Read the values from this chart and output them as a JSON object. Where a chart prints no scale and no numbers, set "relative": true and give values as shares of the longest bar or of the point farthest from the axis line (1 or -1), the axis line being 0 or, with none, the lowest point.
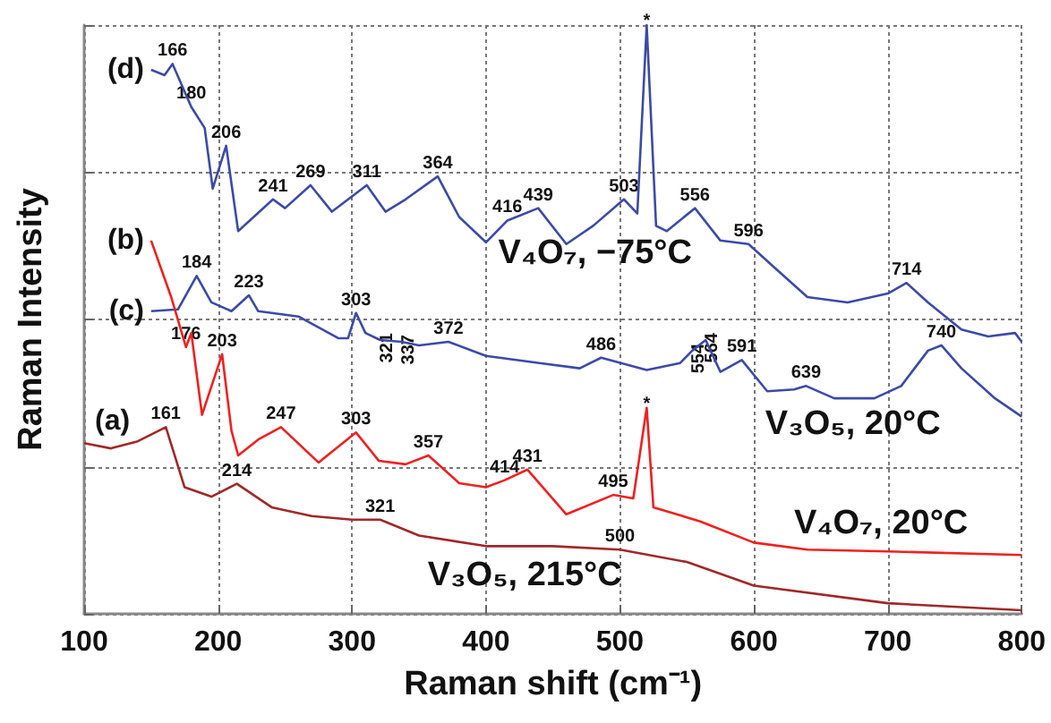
{
  "chart_data": {
    "type": "line",
    "relative": true,
    "xlabel": "Raman shift (cm⁻¹)",
    "ylabel": "Raman Intensity",
    "xlim": [
      100,
      800
    ],
    "xticks": [
      100,
      200,
      300,
      400,
      500,
      600,
      700,
      800
    ],
    "grid": true,
    "marker": "none",
    "line_style": "solid",
    "series": [
      {
        "name": "(d)",
        "color": "#3b4aa8",
        "x": [
          150,
          160,
          166,
          180,
          190,
          196,
          206,
          215,
          241,
          250,
          269,
          285,
          311,
          325,
          340,
          364,
          380,
          400,
          416,
          439,
          460,
          480,
          503,
          513,
          520,
          527,
          535,
          556,
          575,
          596,
          615,
          640,
          670,
          700,
          714,
          730,
          755,
          775,
          795,
          800
        ],
        "values": [
          0.924,
          0.915,
          0.934,
          0.861,
          0.825,
          0.722,
          0.795,
          0.65,
          0.704,
          0.689,
          0.728,
          0.683,
          0.728,
          0.683,
          0.704,
          0.743,
          0.674,
          0.631,
          0.668,
          0.689,
          0.628,
          0.659,
          0.704,
          0.68,
          1.0,
          0.659,
          0.65,
          0.689,
          0.634,
          0.628,
          0.589,
          0.538,
          0.529,
          0.544,
          0.562,
          0.529,
          0.483,
          0.471,
          0.477,
          0.462
        ]
      },
      {
        "name": "(c)",
        "color": "#3b4aa8",
        "x": [
          150,
          170,
          184,
          195,
          210,
          223,
          230,
          260,
          290,
          297,
          303,
          310,
          321,
          337,
          350,
          372,
          400,
          440,
          470,
          486,
          520,
          545,
          554,
          564,
          575,
          591,
          610,
          630,
          639,
          660,
          690,
          710,
          730,
          740,
          755,
          780,
          800
        ],
        "values": [
          0.514,
          0.517,
          0.574,
          0.529,
          0.514,
          0.541,
          0.514,
          0.505,
          0.468,
          0.468,
          0.511,
          0.477,
          0.465,
          0.462,
          0.456,
          0.462,
          0.438,
          0.426,
          0.417,
          0.435,
          0.414,
          0.426,
          0.447,
          0.465,
          0.411,
          0.431,
          0.378,
          0.381,
          0.387,
          0.366,
          0.366,
          0.387,
          0.447,
          0.456,
          0.417,
          0.366,
          0.335
        ]
      },
      {
        "name": "(b)",
        "color": "#f02020",
        "x": [
          150,
          165,
          176,
          180,
          188,
          203,
          210,
          215,
          230,
          247,
          275,
          303,
          320,
          340,
          357,
          380,
          400,
          414,
          431,
          460,
          495,
          510,
          520,
          525,
          560,
          600,
          640,
          700,
          800
        ],
        "values": [
          0.634,
          0.538,
          0.453,
          0.477,
          0.338,
          0.441,
          0.311,
          0.269,
          0.296,
          0.317,
          0.257,
          0.308,
          0.26,
          0.254,
          0.269,
          0.222,
          0.215,
          0.227,
          0.245,
          0.169,
          0.202,
          0.196,
          0.35,
          0.181,
          0.157,
          0.121,
          0.109,
          0.106,
          0.1
        ]
      },
      {
        "name": "(a)",
        "color": "#a02828",
        "x": [
          100,
          120,
          140,
          161,
          175,
          195,
          214,
          240,
          270,
          300,
          321,
          350,
          400,
          450,
          500,
          550,
          600,
          700,
          800
        ],
        "values": [
          0.29,
          0.281,
          0.293,
          0.317,
          0.215,
          0.199,
          0.221,
          0.181,
          0.166,
          0.16,
          0.16,
          0.133,
          0.115,
          0.115,
          0.109,
          0.088,
          0.048,
          0.018,
          0.006
        ]
      }
    ],
    "annotations": [
      "V₄O₇, −75°C",
      "V₃O₅, 20°C",
      "V₄O₇, 20°C",
      "V₃O₅, 215°C",
      {
        "text": "166",
        "x": 166,
        "y": 0.934
      },
      {
        "text": "180",
        "x": 180,
        "y": 0.861
      },
      {
        "text": "206",
        "x": 206,
        "y": 0.795
      },
      {
        "text": "241",
        "x": 241,
        "y": 0.704
      },
      {
        "text": "269",
        "x": 269,
        "y": 0.728
      },
      {
        "text": "311",
        "x": 311,
        "y": 0.728
      },
      {
        "text": "364",
        "x": 364,
        "y": 0.743
      },
      {
        "text": "416",
        "x": 416,
        "y": 0.668
      },
      {
        "text": "439",
        "x": 439,
        "y": 0.689
      },
      {
        "text": "503",
        "x": 503,
        "y": 0.704
      },
      {
        "text": "556",
        "x": 556,
        "y": 0.689
      },
      {
        "text": "596",
        "x": 596,
        "y": 0.628
      },
      {
        "text": "714",
        "x": 714,
        "y": 0.562
      },
      {
        "text": "*",
        "x": 520,
        "y": 1.0
      },
      {
        "text": "184",
        "x": 184,
        "y": 0.574
      },
      {
        "text": "223",
        "x": 223,
        "y": 0.541
      },
      {
        "text": "303",
        "x": 303,
        "y": 0.511
      },
      {
        "text": "321",
        "x": 321,
        "y": 0.465
      },
      {
        "text": "337",
        "x": 337,
        "y": 0.462
      },
      {
        "text": "372",
        "x": 372,
        "y": 0.462
      },
      {
        "text": "486",
        "x": 486,
        "y": 0.435
      },
      {
        "text": "554",
        "x": 554,
        "y": 0.447
      },
      {
        "text": "564",
        "x": 564,
        "y": 0.465
      },
      {
        "text": "591",
        "x": 591,
        "y": 0.431
      },
      {
        "text": "639",
        "x": 639,
        "y": 0.387
      },
      {
        "text": "740",
        "x": 740,
        "y": 0.456
      },
      {
        "text": "176",
        "x": 176,
        "y": 0.453
      },
      {
        "text": "203",
        "x": 203,
        "y": 0.441
      },
      {
        "text": "247",
        "x": 247,
        "y": 0.317
      },
      {
        "text": "303",
        "x": 303,
        "y": 0.308
      },
      {
        "text": "357",
        "x": 357,
        "y": 0.269
      },
      {
        "text": "414",
        "x": 414,
        "y": 0.227
      },
      {
        "text": "431",
        "x": 431,
        "y": 0.245
      },
      {
        "text": "495",
        "x": 495,
        "y": 0.202
      },
      {
        "text": "*",
        "x": 520,
        "y": 0.35
      },
      {
        "text": "161",
        "x": 161,
        "y": 0.317
      },
      {
        "text": "214",
        "x": 214,
        "y": 0.221
      },
      {
        "text": "321",
        "x": 321,
        "y": 0.16
      },
      {
        "text": "500",
        "x": 500,
        "y": 0.109
      }
    ]
  }
}
